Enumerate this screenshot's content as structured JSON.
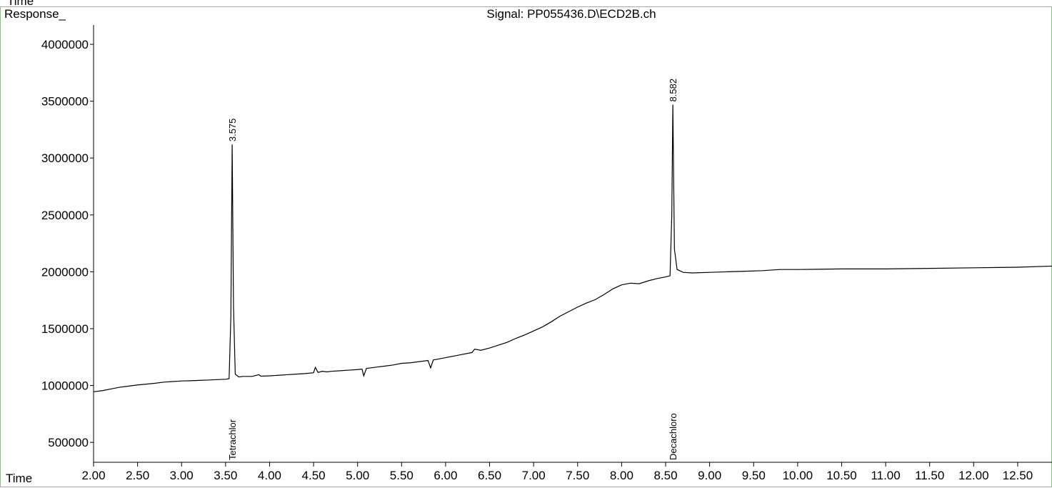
{
  "chart_data": {
    "type": "line",
    "header": "Time",
    "title": "Signal: PP055436.D\\ECD2B.ch",
    "y_label": "Response_",
    "x_label": "Time",
    "color": "#000000",
    "xlim": [
      2.0,
      12.89
    ],
    "ylim": [
      325000,
      4170000
    ],
    "xticks": [
      {
        "value": 2.0,
        "label": "2.00"
      },
      {
        "value": 2.5,
        "label": "2.50"
      },
      {
        "value": 3.0,
        "label": "3.00"
      },
      {
        "value": 3.5,
        "label": "3.50"
      },
      {
        "value": 4.0,
        "label": "4.00"
      },
      {
        "value": 4.5,
        "label": "4.50"
      },
      {
        "value": 5.0,
        "label": "5.00"
      },
      {
        "value": 5.5,
        "label": "5.50"
      },
      {
        "value": 6.0,
        "label": "6.00"
      },
      {
        "value": 6.5,
        "label": "6.50"
      },
      {
        "value": 7.0,
        "label": "7.00"
      },
      {
        "value": 7.5,
        "label": "7.50"
      },
      {
        "value": 8.0,
        "label": "8.00"
      },
      {
        "value": 8.5,
        "label": "8.50"
      },
      {
        "value": 9.0,
        "label": "9.00"
      },
      {
        "value": 9.5,
        "label": "9.50"
      },
      {
        "value": 10.0,
        "label": "10.00"
      },
      {
        "value": 10.5,
        "label": "10.50"
      },
      {
        "value": 11.0,
        "label": "11.00"
      },
      {
        "value": 11.5,
        "label": "11.50"
      },
      {
        "value": 12.0,
        "label": "12.00"
      },
      {
        "value": 12.5,
        "label": "12.50"
      }
    ],
    "yticks": [
      500000,
      1000000,
      1500000,
      2000000,
      2500000,
      3000000,
      3500000,
      4000000
    ],
    "x": [
      2.0,
      2.1,
      2.2,
      2.3,
      2.4,
      2.5,
      2.6,
      2.7,
      2.8,
      2.9,
      3.0,
      3.1,
      3.2,
      3.3,
      3.4,
      3.5,
      3.54,
      3.56,
      3.575,
      3.59,
      3.61,
      3.65,
      3.7,
      3.8,
      3.88,
      3.9,
      4.0,
      4.1,
      4.2,
      4.3,
      4.4,
      4.5,
      4.52,
      4.55,
      4.6,
      4.65,
      4.7,
      4.8,
      4.9,
      5.0,
      5.05,
      5.07,
      5.1,
      5.2,
      5.3,
      5.4,
      5.5,
      5.6,
      5.7,
      5.8,
      5.83,
      5.86,
      5.9,
      6.0,
      6.1,
      6.2,
      6.3,
      6.33,
      6.4,
      6.5,
      6.6,
      6.7,
      6.8,
      6.9,
      7.0,
      7.1,
      7.2,
      7.3,
      7.4,
      7.5,
      7.6,
      7.7,
      7.8,
      7.9,
      8.0,
      8.1,
      8.2,
      8.3,
      8.4,
      8.5,
      8.55,
      8.57,
      8.582,
      8.6,
      8.63,
      8.7,
      8.8,
      9.0,
      9.2,
      9.4,
      9.6,
      9.8,
      10.0,
      10.5,
      11.0,
      11.5,
      12.0,
      12.5,
      12.89
    ],
    "values": [
      945000,
      955000,
      970000,
      985000,
      995000,
      1005000,
      1012000,
      1020000,
      1030000,
      1035000,
      1040000,
      1042000,
      1045000,
      1048000,
      1052000,
      1055000,
      1060000,
      1600000,
      3120000,
      1700000,
      1100000,
      1075000,
      1080000,
      1080000,
      1095000,
      1082000,
      1085000,
      1090000,
      1095000,
      1100000,
      1105000,
      1112000,
      1160000,
      1115000,
      1125000,
      1120000,
      1125000,
      1130000,
      1135000,
      1140000,
      1145000,
      1085000,
      1150000,
      1160000,
      1170000,
      1180000,
      1195000,
      1200000,
      1210000,
      1220000,
      1155000,
      1225000,
      1230000,
      1245000,
      1260000,
      1275000,
      1290000,
      1320000,
      1310000,
      1330000,
      1355000,
      1380000,
      1415000,
      1445000,
      1480000,
      1515000,
      1560000,
      1610000,
      1650000,
      1690000,
      1725000,
      1755000,
      1800000,
      1850000,
      1885000,
      1900000,
      1895000,
      1920000,
      1940000,
      1955000,
      1965000,
      2500000,
      3470000,
      2200000,
      2020000,
      1995000,
      1990000,
      1995000,
      2000000,
      2005000,
      2010000,
      2020000,
      2020000,
      2025000,
      2025000,
      2030000,
      2035000,
      2040000,
      2050000
    ],
    "peaks": [
      {
        "x": 3.575,
        "y": 3120000,
        "label": "3.575",
        "compound": "Tetrachlor"
      },
      {
        "x": 8.582,
        "y": 3470000,
        "label": "8.582",
        "compound": "Decachloro"
      }
    ]
  }
}
